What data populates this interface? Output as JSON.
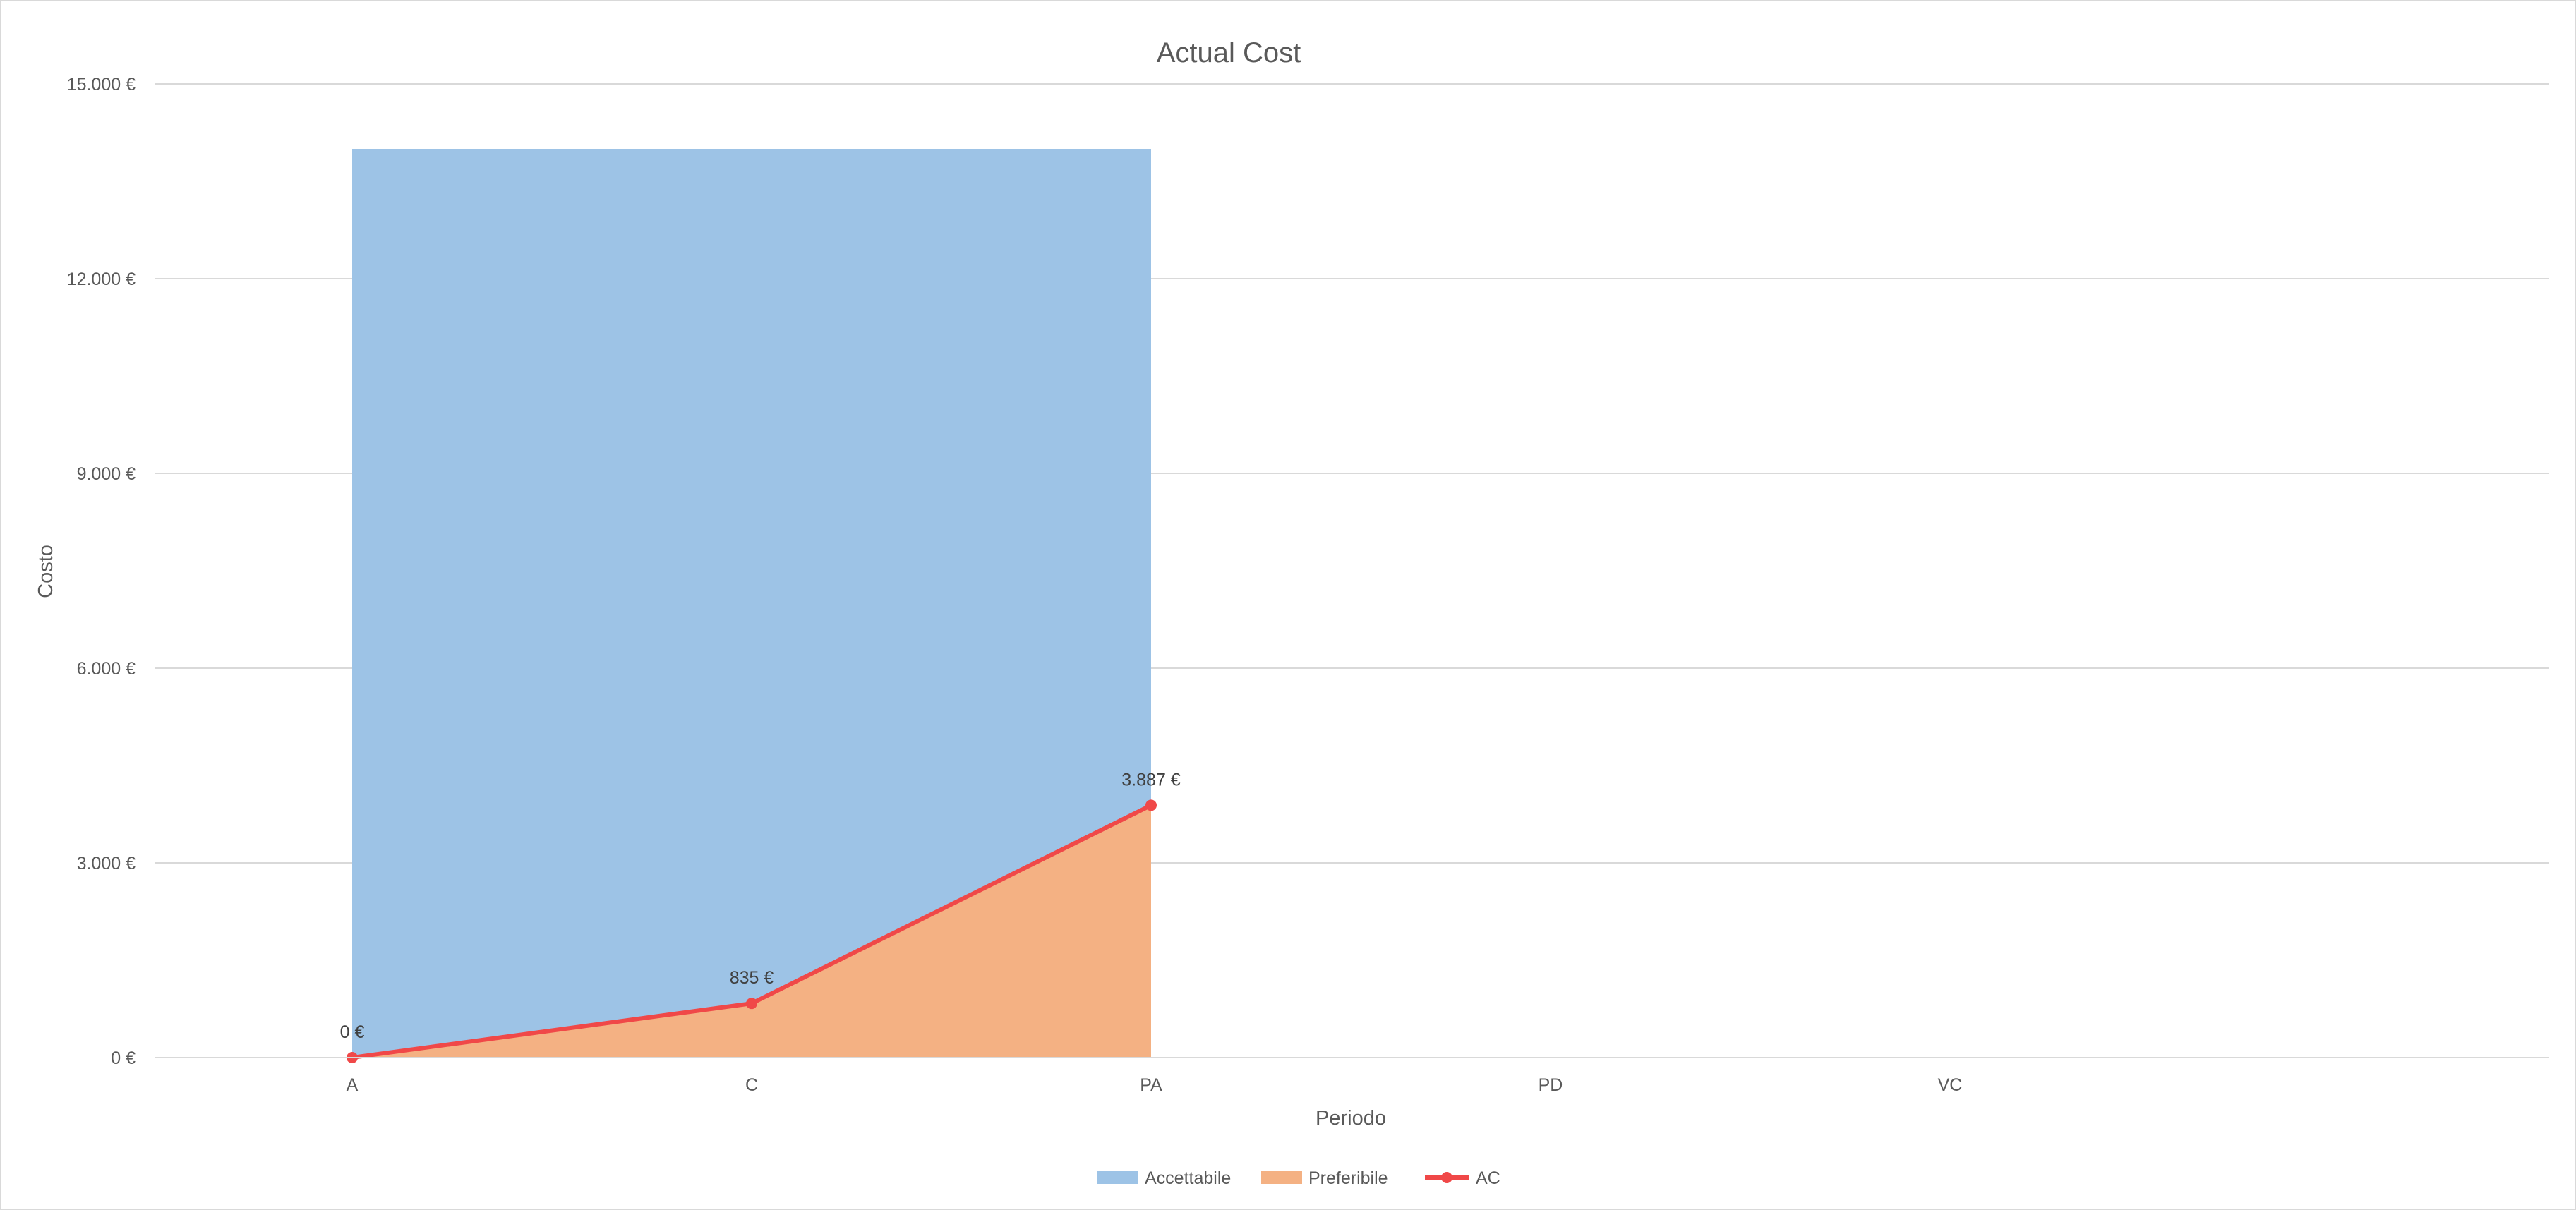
{
  "chart_data": {
    "type": "area",
    "title": "Actual Cost",
    "xlabel": "Periodo",
    "ylabel": "Costo",
    "categories": [
      "A",
      "C",
      "PA",
      "PD",
      "VC"
    ],
    "ylim": [
      0,
      15000
    ],
    "yticks": [
      0,
      3000,
      6000,
      9000,
      12000,
      15000
    ],
    "ytick_labels": [
      "0 €",
      "3.000 €",
      "6.000 €",
      "9.000 €",
      "12.000 €",
      "15.000 €"
    ],
    "grid": true,
    "legend_position": "bottom",
    "series": [
      {
        "name": "Accettabile",
        "kind": "area",
        "color": "#9dc3e6",
        "values": [
          14000,
          14000,
          14000,
          null,
          null
        ]
      },
      {
        "name": "Preferibile",
        "kind": "area",
        "color": "#f4b183",
        "values": [
          0,
          835,
          3887,
          null,
          null
        ]
      },
      {
        "name": "AC",
        "kind": "line",
        "color": "#f04848",
        "marker": "circle",
        "values": [
          0,
          835,
          3887,
          null,
          null
        ],
        "data_labels": [
          "0 €",
          "835 €",
          "3.887 €"
        ]
      }
    ]
  }
}
